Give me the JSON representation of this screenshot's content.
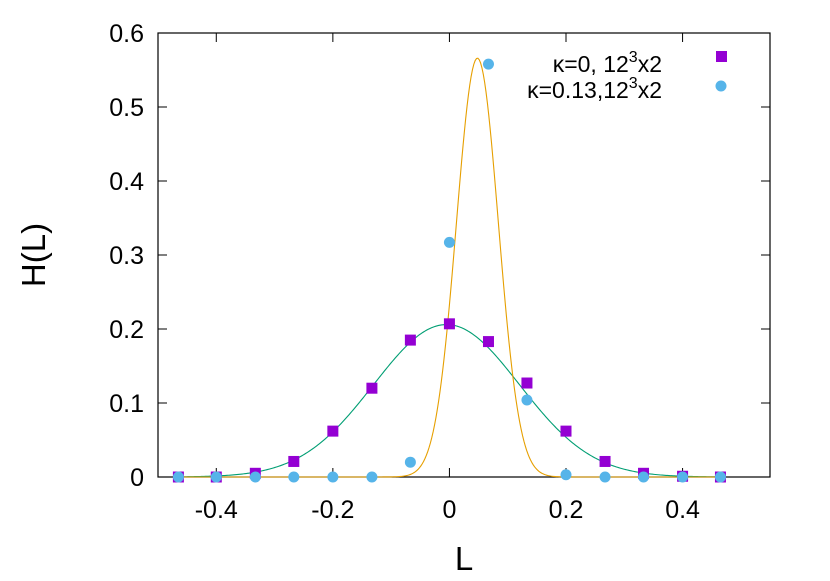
{
  "chart_data": {
    "type": "scatter",
    "title": "",
    "xlabel": "L",
    "ylabel": "H(L)",
    "xlim": [
      -0.5,
      0.55
    ],
    "ylim": [
      0,
      0.6
    ],
    "xticks": [
      -0.4,
      -0.2,
      0,
      0.2,
      0.4
    ],
    "xtick_labels": [
      "-0.4",
      "-0.2",
      "0",
      "0.2",
      "0.4"
    ],
    "yticks": [
      0,
      0.1,
      0.2,
      0.3,
      0.4,
      0.5,
      0.6
    ],
    "ytick_labels": [
      "0",
      "0.1",
      "0.2",
      "0.3",
      "0.4",
      "0.5",
      "0.6"
    ],
    "grid": false,
    "legend_position": "top-right",
    "legend": [
      {
        "text": "κ=0, 12",
        "sup": "3",
        "suffix": "x2"
      },
      {
        "text": "κ=0.13,12",
        "sup": "3",
        "suffix": "x2"
      }
    ],
    "series": [
      {
        "marker": "square",
        "color": "#9400d3",
        "fit_color": "#009e73",
        "fit": {
          "amplitude": 0.206,
          "center": -0.005,
          "sigma": 0.125
        },
        "x": [
          -0.465,
          -0.4,
          -0.333,
          -0.267,
          -0.2,
          -0.133,
          -0.067,
          0,
          0.067,
          0.133,
          0.2,
          0.267,
          0.333,
          0.4,
          0.465
        ],
        "y": [
          0,
          0,
          0.005,
          0.021,
          0.062,
          0.12,
          0.185,
          0.207,
          0.183,
          0.127,
          0.062,
          0.021,
          0.005,
          0.001,
          0
        ]
      },
      {
        "marker": "circle",
        "color": "#56b4e9",
        "fit_color": "#e69f00",
        "fit": {
          "amplitude": 0.566,
          "center": 0.048,
          "sigma": 0.036
        },
        "x": [
          -0.465,
          -0.4,
          -0.333,
          -0.267,
          -0.2,
          -0.133,
          -0.067,
          0,
          0.067,
          0.133,
          0.2,
          0.267,
          0.333,
          0.4,
          0.465
        ],
        "y": [
          0,
          0,
          0,
          0,
          0,
          0,
          0.02,
          0.317,
          0.558,
          0.104,
          0.003,
          0,
          0,
          0,
          0
        ]
      }
    ]
  }
}
